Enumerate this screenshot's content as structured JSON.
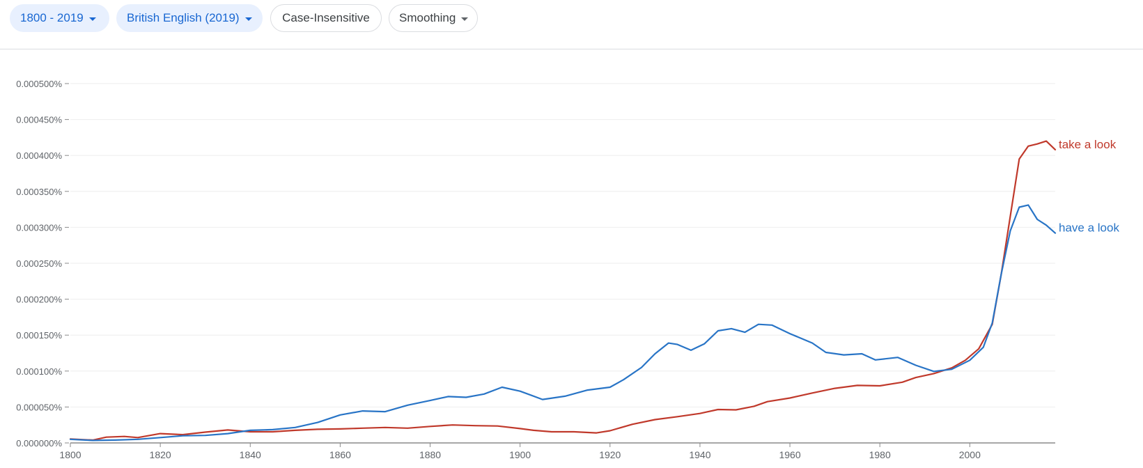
{
  "toolbar": {
    "year_range": "1800 - 2019",
    "corpus": "British English (2019)",
    "case_option": "Case-Insensitive",
    "smoothing": "Smoothing"
  },
  "colors": {
    "take_a_look": "#c0392b",
    "have_a_look": "#2874c6",
    "axis": "#8a8a8a",
    "grid": "#eeeeee",
    "tick_text": "#5f6368",
    "chip_blue": "#1967d2",
    "chip_blue_bg": "#e8f0fe"
  },
  "chart_data": {
    "type": "line",
    "title": "",
    "xlabel": "",
    "ylabel": "",
    "xlim": [
      1800,
      2019
    ],
    "ylim": [
      0,
      0.0005
    ],
    "grid": true,
    "legend": "inline-right",
    "x_ticks": [
      1800,
      1820,
      1840,
      1860,
      1880,
      1900,
      1920,
      1940,
      1960,
      1980,
      2000
    ],
    "y_ticks": [
      {
        "value": 0.0,
        "label": "0.000000%"
      },
      {
        "value": 5e-05,
        "label": "0.000050%"
      },
      {
        "value": 0.0001,
        "label": "0.000100%"
      },
      {
        "value": 0.00015,
        "label": "0.000150%"
      },
      {
        "value": 0.0002,
        "label": "0.000200%"
      },
      {
        "value": 0.00025,
        "label": "0.000250%"
      },
      {
        "value": 0.0003,
        "label": "0.000300%"
      },
      {
        "value": 0.00035,
        "label": "0.000350%"
      },
      {
        "value": 0.0004,
        "label": "0.000400%"
      },
      {
        "value": 0.00045,
        "label": "0.000450%"
      },
      {
        "value": 0.0005,
        "label": "0.000500%"
      }
    ],
    "series": [
      {
        "name": "take a look",
        "color": "#c0392b",
        "points": [
          [
            1800,
            5.5e-06
          ],
          [
            1803,
            4.5e-06
          ],
          [
            1805,
            4e-06
          ],
          [
            1808,
            8e-06
          ],
          [
            1812,
            9e-06
          ],
          [
            1815,
            7.5e-06
          ],
          [
            1820,
            1.3e-05
          ],
          [
            1825,
            1.15e-05
          ],
          [
            1830,
            1.5e-05
          ],
          [
            1835,
            1.8e-05
          ],
          [
            1840,
            1.55e-05
          ],
          [
            1845,
            1.55e-05
          ],
          [
            1850,
            1.75e-05
          ],
          [
            1855,
            1.9e-05
          ],
          [
            1860,
            1.95e-05
          ],
          [
            1865,
            2.05e-05
          ],
          [
            1870,
            2.15e-05
          ],
          [
            1875,
            2.05e-05
          ],
          [
            1880,
            2.3e-05
          ],
          [
            1885,
            2.5e-05
          ],
          [
            1890,
            2.4e-05
          ],
          [
            1895,
            2.35e-05
          ],
          [
            1900,
            2e-05
          ],
          [
            1903,
            1.75e-05
          ],
          [
            1907,
            1.55e-05
          ],
          [
            1912,
            1.55e-05
          ],
          [
            1917,
            1.4e-05
          ],
          [
            1920,
            1.7e-05
          ],
          [
            1925,
            2.6e-05
          ],
          [
            1930,
            3.25e-05
          ],
          [
            1935,
            3.65e-05
          ],
          [
            1940,
            4.1e-05
          ],
          [
            1944,
            4.65e-05
          ],
          [
            1948,
            4.6e-05
          ],
          [
            1952,
            5.1e-05
          ],
          [
            1955,
            5.75e-05
          ],
          [
            1960,
            6.25e-05
          ],
          [
            1965,
            6.95e-05
          ],
          [
            1970,
            7.6e-05
          ],
          [
            1975,
            8e-05
          ],
          [
            1980,
            7.95e-05
          ],
          [
            1985,
            8.45e-05
          ],
          [
            1988,
            9.1e-05
          ],
          [
            1992,
            9.65e-05
          ],
          [
            1996,
            0.0001045
          ],
          [
            1999,
            0.000115
          ],
          [
            2002,
            0.000131
          ],
          [
            2005,
            0.000165
          ],
          [
            2007,
            0.000235
          ],
          [
            2009,
            0.000315
          ],
          [
            2011,
            0.000395
          ],
          [
            2013,
            0.000413
          ],
          [
            2015,
            0.000416
          ],
          [
            2017,
            0.00042
          ],
          [
            2019,
            0.000408
          ]
        ]
      },
      {
        "name": "have a look",
        "color": "#2874c6",
        "points": [
          [
            1800,
            5e-06
          ],
          [
            1805,
            3.5e-06
          ],
          [
            1810,
            4e-06
          ],
          [
            1815,
            5e-06
          ],
          [
            1820,
            7.5e-06
          ],
          [
            1825,
            1e-05
          ],
          [
            1830,
            1.05e-05
          ],
          [
            1835,
            1.3e-05
          ],
          [
            1840,
            1.75e-05
          ],
          [
            1845,
            1.85e-05
          ],
          [
            1850,
            2.15e-05
          ],
          [
            1855,
            2.85e-05
          ],
          [
            1860,
            3.9e-05
          ],
          [
            1865,
            4.45e-05
          ],
          [
            1870,
            4.35e-05
          ],
          [
            1875,
            5.25e-05
          ],
          [
            1880,
            5.9e-05
          ],
          [
            1884,
            6.45e-05
          ],
          [
            1888,
            6.35e-05
          ],
          [
            1892,
            6.8e-05
          ],
          [
            1896,
            7.75e-05
          ],
          [
            1900,
            7.2e-05
          ],
          [
            1905,
            6.05e-05
          ],
          [
            1910,
            6.5e-05
          ],
          [
            1915,
            7.35e-05
          ],
          [
            1920,
            7.75e-05
          ],
          [
            1923,
            8.8e-05
          ],
          [
            1927,
            0.000105
          ],
          [
            1930,
            0.000124
          ],
          [
            1933,
            0.000139
          ],
          [
            1935,
            0.000137
          ],
          [
            1938,
            0.000129
          ],
          [
            1941,
            0.000138
          ],
          [
            1944,
            0.000156
          ],
          [
            1947,
            0.000159
          ],
          [
            1950,
            0.000154
          ],
          [
            1953,
            0.000165
          ],
          [
            1956,
            0.000164
          ],
          [
            1960,
            0.000152
          ],
          [
            1965,
            0.000139
          ],
          [
            1968,
            0.000126
          ],
          [
            1972,
            0.0001225
          ],
          [
            1976,
            0.000124
          ],
          [
            1979,
            0.0001155
          ],
          [
            1984,
            0.000119
          ],
          [
            1988,
            0.000108
          ],
          [
            1992,
            9.95e-05
          ],
          [
            1996,
            0.0001025
          ],
          [
            2000,
            0.000115
          ],
          [
            2003,
            0.000133
          ],
          [
            2005,
            0.000167
          ],
          [
            2007,
            0.000235
          ],
          [
            2009,
            0.000295
          ],
          [
            2011,
            0.000328
          ],
          [
            2013,
            0.000331
          ],
          [
            2015,
            0.000311
          ],
          [
            2017,
            0.000303
          ],
          [
            2019,
            0.000292
          ]
        ]
      }
    ]
  }
}
